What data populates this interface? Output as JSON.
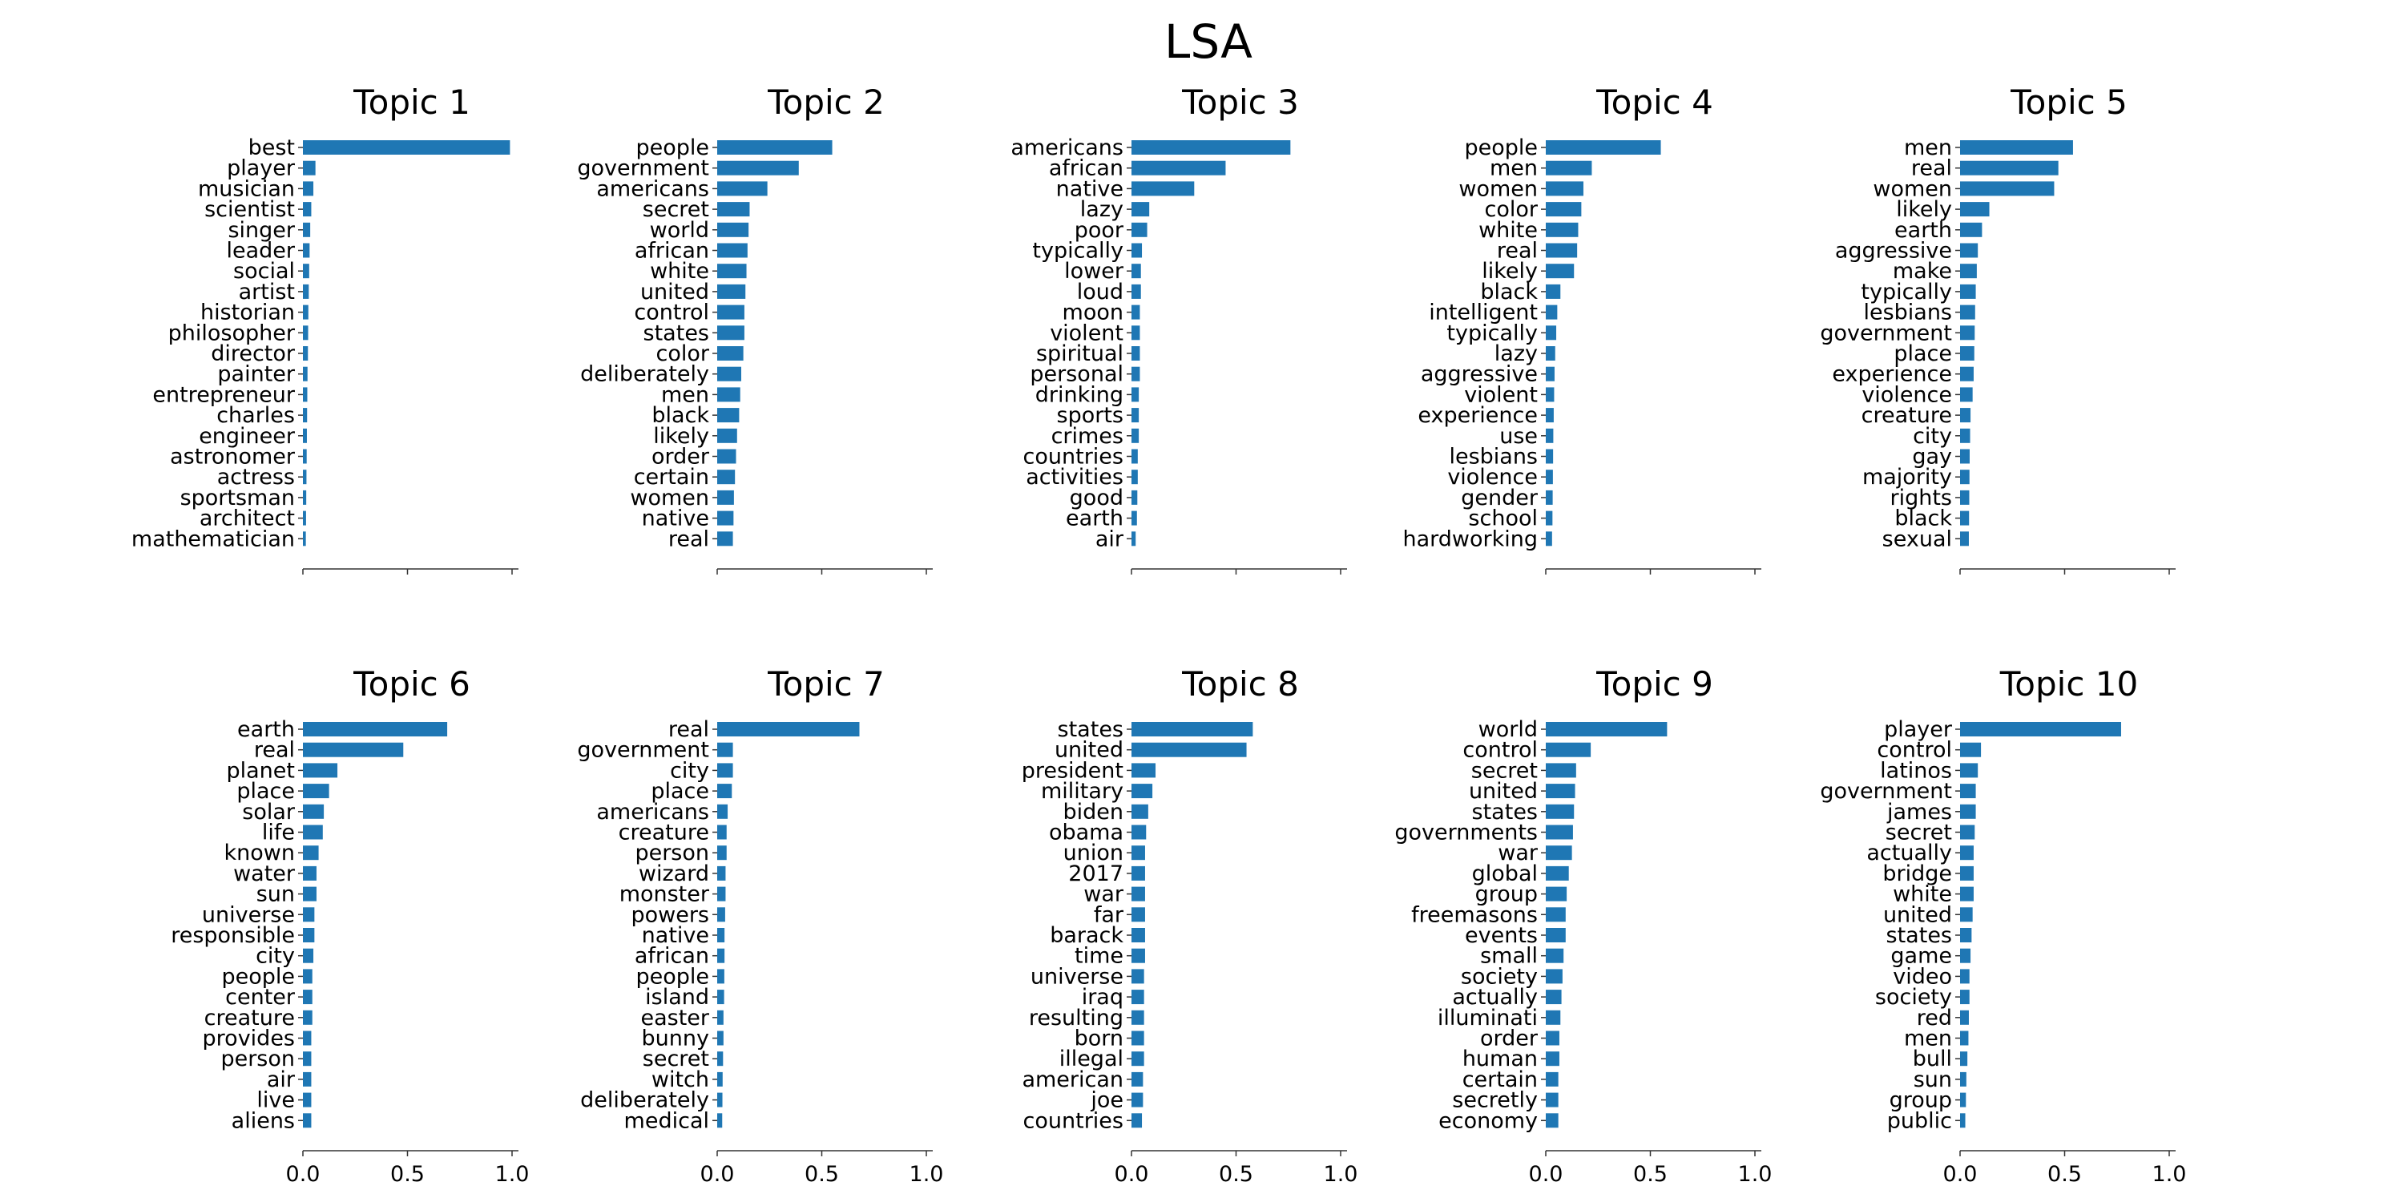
{
  "figure_title": "LSA",
  "colors": {
    "bar": "#1f77b4",
    "axis": "#333333"
  },
  "chart_data": [
    {
      "type": "bar",
      "orientation": "horizontal",
      "title": "Topic 1",
      "categories": [
        "best",
        "player",
        "musician",
        "scientist",
        "singer",
        "leader",
        "social",
        "artist",
        "historian",
        "philosopher",
        "director",
        "painter",
        "entrepreneur",
        "charles",
        "engineer",
        "astronomer",
        "actress",
        "sportsman",
        "architect",
        "mathematician"
      ],
      "values": [
        0.99,
        0.06,
        0.05,
        0.04,
        0.035,
        0.032,
        0.03,
        0.028,
        0.026,
        0.025,
        0.024,
        0.022,
        0.021,
        0.02,
        0.019,
        0.018,
        0.017,
        0.016,
        0.015,
        0.014
      ],
      "xlim": [
        0,
        1.03
      ],
      "xticks": [
        0.0,
        0.5,
        1.0
      ],
      "xtick_labels_visible": false
    },
    {
      "type": "bar",
      "orientation": "horizontal",
      "title": "Topic 2",
      "categories": [
        "people",
        "government",
        "americans",
        "secret",
        "world",
        "african",
        "white",
        "united",
        "control",
        "states",
        "color",
        "deliberately",
        "men",
        "black",
        "likely",
        "order",
        "certain",
        "women",
        "native",
        "real"
      ],
      "values": [
        0.55,
        0.39,
        0.24,
        0.155,
        0.15,
        0.145,
        0.14,
        0.135,
        0.13,
        0.13,
        0.125,
        0.115,
        0.11,
        0.105,
        0.095,
        0.09,
        0.085,
        0.08,
        0.078,
        0.075
      ],
      "xlim": [
        0,
        1.03
      ],
      "xticks": [
        0.0,
        0.5,
        1.0
      ],
      "xtick_labels_visible": false
    },
    {
      "type": "bar",
      "orientation": "horizontal",
      "title": "Topic 3",
      "categories": [
        "americans",
        "african",
        "native",
        "lazy",
        "poor",
        "typically",
        "lower",
        "loud",
        "moon",
        "violent",
        "spiritual",
        "personal",
        "drinking",
        "sports",
        "crimes",
        "countries",
        "activities",
        "good",
        "earth",
        "air"
      ],
      "values": [
        0.76,
        0.45,
        0.3,
        0.085,
        0.075,
        0.05,
        0.045,
        0.045,
        0.04,
        0.04,
        0.04,
        0.04,
        0.035,
        0.035,
        0.035,
        0.03,
        0.03,
        0.028,
        0.026,
        0.02
      ],
      "xlim": [
        0,
        1.03
      ],
      "xticks": [
        0.0,
        0.5,
        1.0
      ],
      "xtick_labels_visible": false
    },
    {
      "type": "bar",
      "orientation": "horizontal",
      "title": "Topic 4",
      "categories": [
        "people",
        "men",
        "women",
        "color",
        "white",
        "real",
        "likely",
        "black",
        "intelligent",
        "typically",
        "lazy",
        "aggressive",
        "violent",
        "experience",
        "use",
        "lesbians",
        "violence",
        "gender",
        "school",
        "hardworking"
      ],
      "values": [
        0.55,
        0.22,
        0.18,
        0.17,
        0.155,
        0.15,
        0.135,
        0.07,
        0.055,
        0.05,
        0.045,
        0.042,
        0.04,
        0.038,
        0.036,
        0.035,
        0.034,
        0.033,
        0.032,
        0.03
      ],
      "xlim": [
        0,
        1.03
      ],
      "xticks": [
        0.0,
        0.5,
        1.0
      ],
      "xtick_labels_visible": false
    },
    {
      "type": "bar",
      "orientation": "horizontal",
      "title": "Topic 5",
      "categories": [
        "men",
        "real",
        "women",
        "likely",
        "earth",
        "aggressive",
        "make",
        "typically",
        "lesbians",
        "government",
        "place",
        "experience",
        "violence",
        "creature",
        "city",
        "gay",
        "majority",
        "rights",
        "black",
        "sexual"
      ],
      "values": [
        0.54,
        0.47,
        0.45,
        0.14,
        0.105,
        0.085,
        0.08,
        0.075,
        0.072,
        0.07,
        0.068,
        0.065,
        0.06,
        0.05,
        0.048,
        0.046,
        0.045,
        0.044,
        0.043,
        0.042
      ],
      "xlim": [
        0,
        1.03
      ],
      "xticks": [
        0.0,
        0.5,
        1.0
      ],
      "xtick_labels_visible": false
    },
    {
      "type": "bar",
      "orientation": "horizontal",
      "title": "Topic 6",
      "categories": [
        "earth",
        "real",
        "planet",
        "place",
        "solar",
        "life",
        "known",
        "water",
        "sun",
        "universe",
        "responsible",
        "city",
        "people",
        "center",
        "creature",
        "provides",
        "person",
        "air",
        "live",
        "aliens"
      ],
      "values": [
        0.69,
        0.48,
        0.165,
        0.125,
        0.1,
        0.095,
        0.075,
        0.065,
        0.065,
        0.055,
        0.055,
        0.05,
        0.045,
        0.045,
        0.045,
        0.04,
        0.04,
        0.04,
        0.04,
        0.04
      ],
      "xlim": [
        0,
        1.03
      ],
      "xticks": [
        0.0,
        0.5,
        1.0
      ],
      "xtick_labels_visible": true
    },
    {
      "type": "bar",
      "orientation": "horizontal",
      "title": "Topic 7",
      "categories": [
        "real",
        "government",
        "city",
        "place",
        "americans",
        "creature",
        "person",
        "wizard",
        "monster",
        "powers",
        "native",
        "african",
        "people",
        "island",
        "easter",
        "bunny",
        "secret",
        "witch",
        "deliberately",
        "medical"
      ],
      "values": [
        0.68,
        0.075,
        0.075,
        0.07,
        0.05,
        0.045,
        0.045,
        0.04,
        0.04,
        0.038,
        0.035,
        0.035,
        0.034,
        0.033,
        0.03,
        0.03,
        0.028,
        0.026,
        0.025,
        0.024
      ],
      "xlim": [
        0,
        1.03
      ],
      "xticks": [
        0.0,
        0.5,
        1.0
      ],
      "xtick_labels_visible": true
    },
    {
      "type": "bar",
      "orientation": "horizontal",
      "title": "Topic 8",
      "categories": [
        "states",
        "united",
        "president",
        "military",
        "biden",
        "obama",
        "union",
        "2017",
        "war",
        "far",
        "barack",
        "time",
        "universe",
        "iraq",
        "resulting",
        "born",
        "illegal",
        "american",
        "joe",
        "countries"
      ],
      "values": [
        0.58,
        0.55,
        0.115,
        0.1,
        0.08,
        0.07,
        0.065,
        0.065,
        0.065,
        0.065,
        0.065,
        0.065,
        0.06,
        0.06,
        0.06,
        0.06,
        0.06,
        0.055,
        0.055,
        0.05
      ],
      "xlim": [
        0,
        1.03
      ],
      "xticks": [
        0.0,
        0.5,
        1.0
      ],
      "xtick_labels_visible": true
    },
    {
      "type": "bar",
      "orientation": "horizontal",
      "title": "Topic 9",
      "categories": [
        "world",
        "control",
        "secret",
        "united",
        "states",
        "governments",
        "war",
        "global",
        "group",
        "freemasons",
        "events",
        "small",
        "society",
        "actually",
        "illuminati",
        "order",
        "human",
        "certain",
        "secretly",
        "economy"
      ],
      "values": [
        0.58,
        0.215,
        0.145,
        0.14,
        0.135,
        0.13,
        0.125,
        0.11,
        0.1,
        0.095,
        0.095,
        0.085,
        0.08,
        0.075,
        0.07,
        0.065,
        0.065,
        0.06,
        0.06,
        0.06
      ],
      "xlim": [
        0,
        1.03
      ],
      "xticks": [
        0.0,
        0.5,
        1.0
      ],
      "xtick_labels_visible": true
    },
    {
      "type": "bar",
      "orientation": "horizontal",
      "title": "Topic 10",
      "categories": [
        "player",
        "control",
        "latinos",
        "government",
        "james",
        "secret",
        "actually",
        "bridge",
        "white",
        "united",
        "states",
        "game",
        "video",
        "society",
        "red",
        "men",
        "bull",
        "sun",
        "group",
        "public"
      ],
      "values": [
        0.77,
        0.1,
        0.085,
        0.075,
        0.075,
        0.07,
        0.065,
        0.065,
        0.065,
        0.06,
        0.055,
        0.05,
        0.045,
        0.045,
        0.042,
        0.04,
        0.035,
        0.03,
        0.028,
        0.025
      ],
      "xlim": [
        0,
        1.03
      ],
      "xticks": [
        0.0,
        0.5,
        1.0
      ],
      "xtick_labels_visible": true
    }
  ]
}
